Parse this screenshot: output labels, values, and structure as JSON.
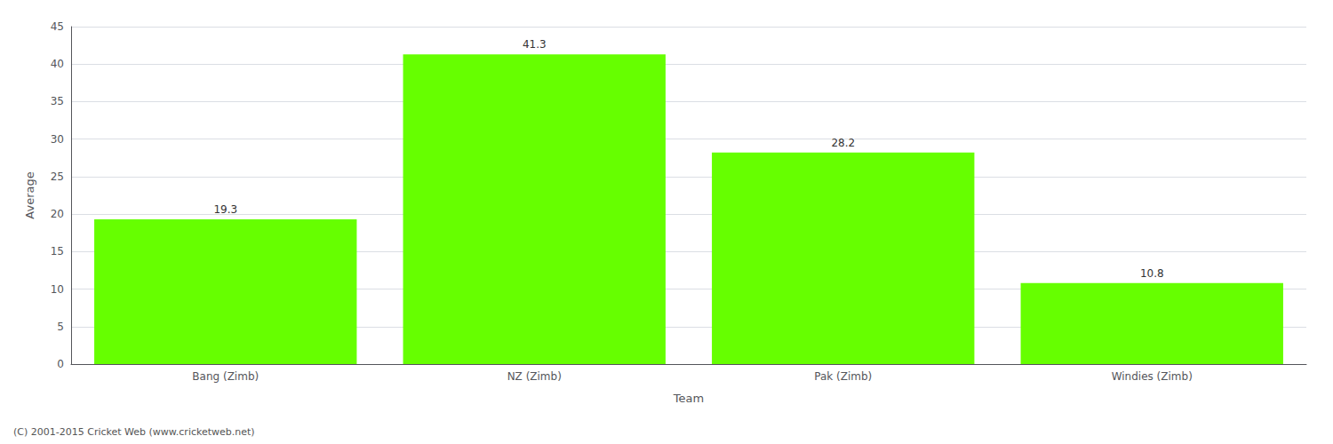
{
  "chart_data": {
    "type": "bar",
    "categories": [
      "Bang (Zimb)",
      "NZ (Zimb)",
      "Pak (Zimb)",
      "Windies (Zimb)"
    ],
    "values": [
      19.3,
      41.3,
      28.2,
      10.8
    ],
    "color": "#66ff00",
    "xlabel": "Team",
    "ylabel": "Average",
    "ylim": [
      0,
      45
    ],
    "yticks": [
      0,
      5,
      10,
      15,
      20,
      25,
      30,
      35,
      40,
      45
    ],
    "grid": true,
    "data_labels": true,
    "annotations": [
      "(C) 2001-2015 Cricket Web (www.cricketweb.net)"
    ]
  }
}
